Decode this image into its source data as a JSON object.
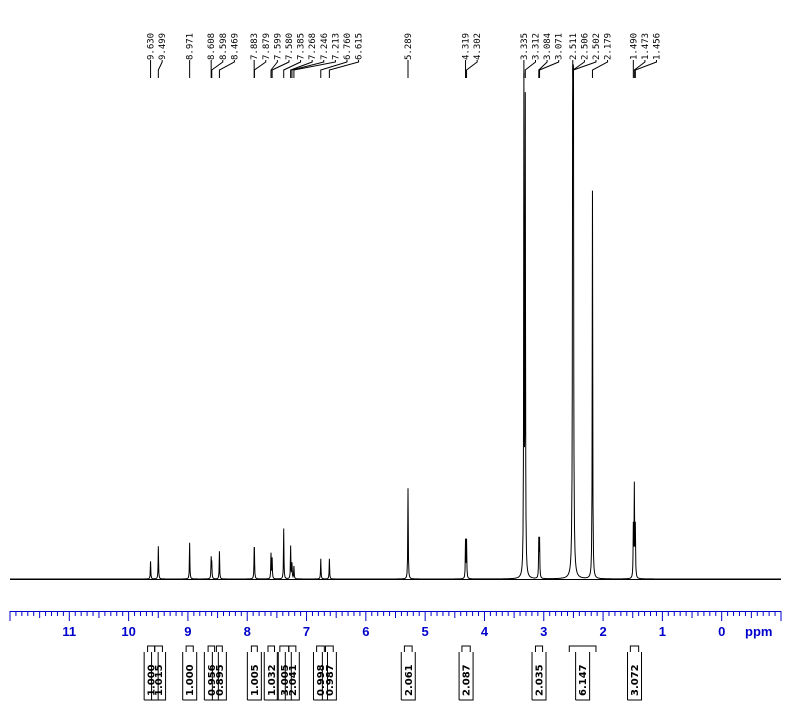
{
  "chart_data": {
    "type": "line",
    "title": "",
    "xlabel": "ppm",
    "ylabel": "",
    "xlim": [
      12.0,
      -1.0
    ],
    "x_reversed": true,
    "grid": false,
    "axis_color": "#0000cc",
    "spectrum_color": "#000000",
    "ticks": [
      "11",
      "10",
      "9",
      "8",
      "7",
      "6",
      "5",
      "4",
      "3",
      "2",
      "1",
      "0"
    ],
    "unit_label": "ppm",
    "peak_labels": [
      "9.630",
      "9.499",
      "8.971",
      "8.608",
      "8.598",
      "8.469",
      "7.883",
      "7.879",
      "7.599",
      "7.580",
      "7.385",
      "7.268",
      "7.246",
      "7.213",
      "6.760",
      "6.615",
      "5.289",
      "4.319",
      "4.302",
      "3.335",
      "3.312",
      "3.084",
      "3.071",
      "2.511",
      "2.506",
      "2.502",
      "2.179",
      "1.490",
      "1.473",
      "1.456"
    ],
    "peaks": [
      {
        "ppm": 9.63,
        "height": 0.035
      },
      {
        "ppm": 9.499,
        "height": 0.065
      },
      {
        "ppm": 8.971,
        "height": 0.072
      },
      {
        "ppm": 8.608,
        "height": 0.04
      },
      {
        "ppm": 8.598,
        "height": 0.03
      },
      {
        "ppm": 8.469,
        "height": 0.055
      },
      {
        "ppm": 7.883,
        "height": 0.04
      },
      {
        "ppm": 7.879,
        "height": 0.04
      },
      {
        "ppm": 7.599,
        "height": 0.05
      },
      {
        "ppm": 7.58,
        "height": 0.04
      },
      {
        "ppm": 7.385,
        "height": 0.1
      },
      {
        "ppm": 7.268,
        "height": 0.065
      },
      {
        "ppm": 7.246,
        "height": 0.03
      },
      {
        "ppm": 7.213,
        "height": 0.025
      },
      {
        "ppm": 6.76,
        "height": 0.04
      },
      {
        "ppm": 6.615,
        "height": 0.04
      },
      {
        "ppm": 5.289,
        "height": 0.18
      },
      {
        "ppm": 4.319,
        "height": 0.075
      },
      {
        "ppm": 4.302,
        "height": 0.075
      },
      {
        "ppm": 3.335,
        "height": 0.97
      },
      {
        "ppm": 3.312,
        "height": 0.93
      },
      {
        "ppm": 3.084,
        "height": 0.075
      },
      {
        "ppm": 3.071,
        "height": 0.075
      },
      {
        "ppm": 2.511,
        "height": 0.97
      },
      {
        "ppm": 2.506,
        "height": 0.99
      },
      {
        "ppm": 2.502,
        "height": 0.96
      },
      {
        "ppm": 2.179,
        "height": 0.77
      },
      {
        "ppm": 1.49,
        "height": 0.1
      },
      {
        "ppm": 1.473,
        "height": 0.18
      },
      {
        "ppm": 1.456,
        "height": 0.1
      }
    ],
    "integrals": [
      {
        "from": 9.68,
        "to": 9.56,
        "value": "1.000"
      },
      {
        "from": 9.56,
        "to": 9.43,
        "value": "1.015"
      },
      {
        "from": 9.03,
        "to": 8.91,
        "value": "1.000"
      },
      {
        "from": 8.66,
        "to": 8.55,
        "value": "0.956"
      },
      {
        "from": 8.52,
        "to": 8.42,
        "value": "0.895"
      },
      {
        "from": 7.93,
        "to": 7.83,
        "value": "1.005"
      },
      {
        "from": 7.65,
        "to": 7.54,
        "value": "1.032"
      },
      {
        "from": 7.45,
        "to": 7.3,
        "value": "3.005"
      },
      {
        "from": 7.3,
        "to": 7.18,
        "value": "2.041"
      },
      {
        "from": 6.83,
        "to": 6.7,
        "value": "0.998"
      },
      {
        "from": 6.68,
        "to": 6.55,
        "value": "0.987"
      },
      {
        "from": 5.35,
        "to": 5.22,
        "value": "2.061"
      },
      {
        "from": 4.38,
        "to": 4.24,
        "value": "2.087"
      },
      {
        "from": 3.14,
        "to": 3.02,
        "value": "2.035"
      },
      {
        "from": 2.57,
        "to": 2.12,
        "value": "6.147"
      },
      {
        "from": 1.54,
        "to": 1.4,
        "value": "3.072"
      }
    ]
  }
}
